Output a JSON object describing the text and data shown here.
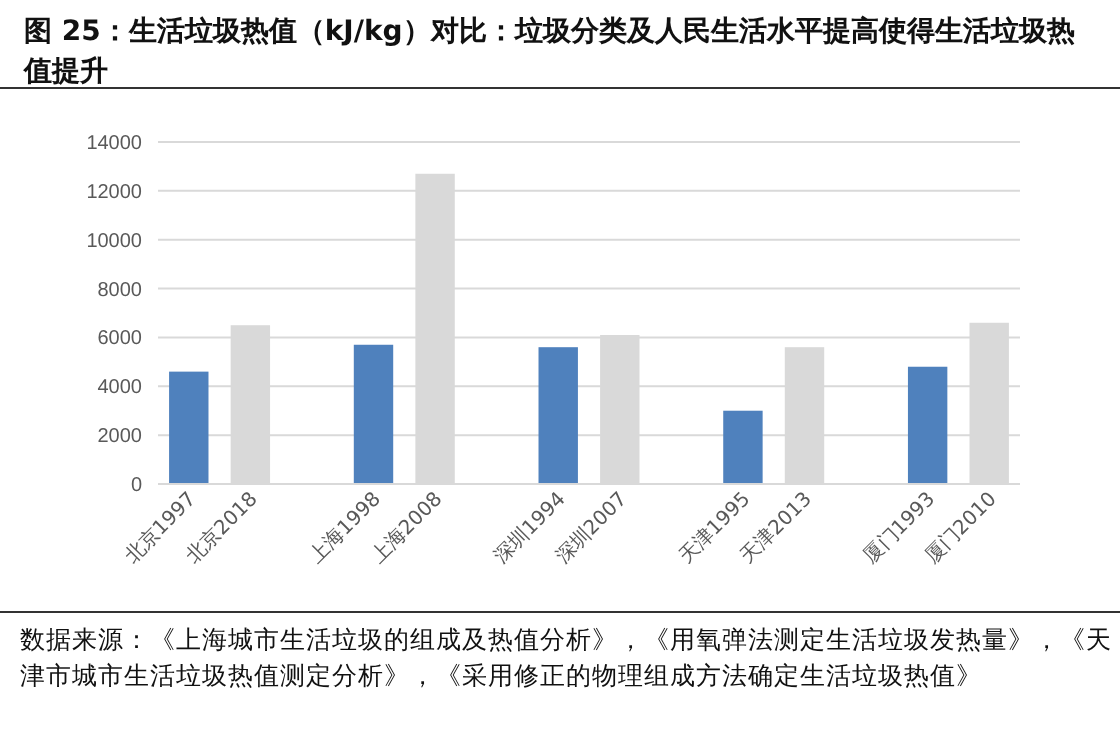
{
  "chart_data": {
    "type": "bar",
    "title": "图 25：生活垃圾热值（kJ/kg）对比：垃圾分类及人民生活水平提高使得生活垃圾热值提升",
    "categories": [
      "北京1997",
      "北京2018",
      null,
      "上海1998",
      "上海2008",
      null,
      "深圳1994",
      "深圳2007",
      null,
      "天津1995",
      "天津2013",
      null,
      "厦门1993",
      "厦门2010"
    ],
    "values": [
      4600,
      6500,
      null,
      5700,
      12700,
      null,
      5600,
      6100,
      null,
      3000,
      5600,
      null,
      4800,
      6600
    ],
    "colors": [
      "#4f81bd",
      "#d9d9d9",
      null,
      "#4f81bd",
      "#d9d9d9",
      null,
      "#4f81bd",
      "#d9d9d9",
      null,
      "#4f81bd",
      "#d9d9d9",
      null,
      "#4f81bd",
      "#d9d9d9"
    ],
    "ylim": [
      0,
      14000
    ],
    "yticks": [
      0,
      2000,
      4000,
      6000,
      8000,
      10000,
      12000,
      14000
    ],
    "grid": "y",
    "annotations": [
      "数据来源：《上海城市生活垃圾的组成及热值分析》，《用氧弹法测定生活垃圾发热量》，《天津市城市生活垃圾热值测定分析》，《采用修正的物理组成方法确定生活垃圾热值》"
    ]
  }
}
